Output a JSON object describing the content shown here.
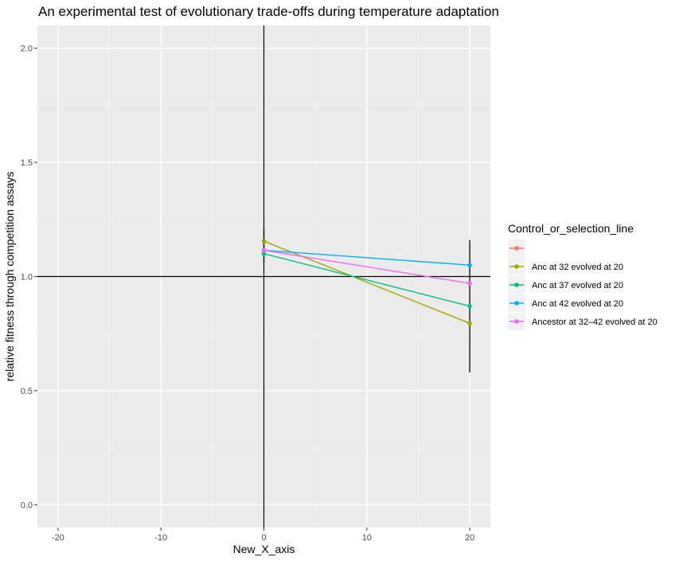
{
  "chart_data": {
    "type": "line",
    "title": "An experimental test of evolutionary trade-offs during temperature adaptation",
    "xlabel": "New_X_axis",
    "ylabel": "relative fitness through competition assays",
    "xlim": [
      -22,
      22
    ],
    "ylim": [
      -0.1,
      2.1
    ],
    "x_ticks": [
      -20,
      -10,
      0,
      10,
      20
    ],
    "x_tick_labels": [
      "-20",
      "-10",
      "0",
      "10",
      "20"
    ],
    "y_ticks": [
      0.0,
      0.5,
      1.0,
      1.5,
      2.0
    ],
    "y_tick_labels": [
      "0.0",
      "0.5",
      "1.0",
      "1.5",
      "2.0"
    ],
    "grid": true,
    "reference_lines": {
      "hline_y": 1.0,
      "vline_x": 0
    },
    "legend": {
      "title": "Control_or_selection_line",
      "position": "right",
      "entries": [
        {
          "label": "",
          "color": "#F8766D"
        },
        {
          "label": "Anc at 32 evolved at 20",
          "color": "#A3A500"
        },
        {
          "label": "Anc at 37 evolved at 20",
          "color": "#00BF7D"
        },
        {
          "label": "Anc at 42 evolved at 20",
          "color": "#00B0F6"
        },
        {
          "label": "Ancestor at 32–42 evolved at 20",
          "color": "#E76BF3"
        }
      ]
    },
    "series": [
      {
        "name": "Anc at 32 evolved at 20",
        "color": "#A3A500",
        "x": [
          0,
          20
        ],
        "y": [
          1.155,
          0.795
        ]
      },
      {
        "name": "Anc at 37 evolved at 20",
        "color": "#00BF7D",
        "x": [
          0,
          20
        ],
        "y": [
          1.1,
          0.87
        ]
      },
      {
        "name": "Anc at 42 evolved at 20",
        "color": "#00B0F6",
        "x": [
          0,
          20
        ],
        "y": [
          1.115,
          1.05
        ]
      },
      {
        "name": "Ancestor at 32–42 evolved at 20",
        "color": "#E76BF3",
        "x": [
          0,
          20
        ],
        "y": [
          1.115,
          0.97
        ]
      }
    ],
    "error_bars": [
      {
        "x": 0,
        "ymin": 1.06,
        "ymax": 1.21
      },
      {
        "x": 20,
        "ymin": 0.58,
        "ymax": 1.16
      }
    ]
  }
}
